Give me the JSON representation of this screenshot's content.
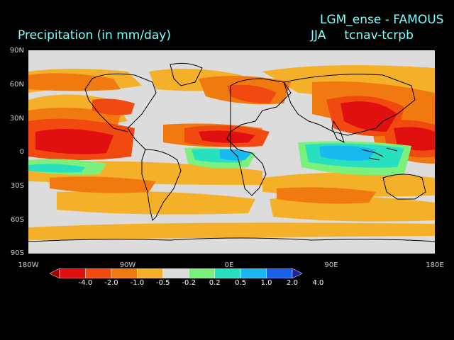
{
  "header": {
    "left_title": "Precipitation (in mm/day)",
    "right_title_line1": "LGM_ense - FAMOUS",
    "right_season": "JJA",
    "right_experiment": "tcnav-tcrpb"
  },
  "axes": {
    "lat_ticks": [
      "90N",
      "60N",
      "30N",
      "0",
      "30S",
      "60S",
      "90S"
    ],
    "lon_ticks": [
      "180W",
      "90W",
      "0E",
      "90E",
      "180E"
    ]
  },
  "colorbar": {
    "labels": [
      "-4.0",
      "-2.0",
      "-1.0",
      "-0.5",
      "-0.2",
      "0.2",
      "0.5",
      "1.0",
      "2.0",
      "4.0"
    ],
    "colors": [
      "#a00000",
      "#e01010",
      "#f04a10",
      "#f07a10",
      "#f5b02a",
      "#dcdcdc",
      "#7cf07c",
      "#28e0c0",
      "#18b8f0",
      "#1860e8",
      "#2020a0"
    ]
  },
  "map": {
    "background": "#dcdcdc",
    "coastline_color": "#000000"
  }
}
